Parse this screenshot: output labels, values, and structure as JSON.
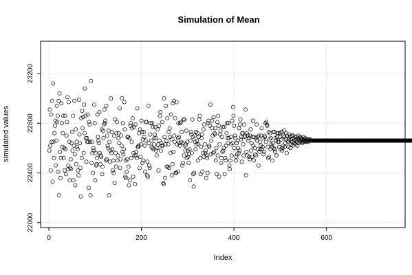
{
  "chart_data": {
    "type": "scatter",
    "title": "Simulation of Mean",
    "xlabel": "Index",
    "ylabel": "simulated values",
    "xlim": [
      -18,
      770
    ],
    "ylim": [
      21960,
      23460
    ],
    "x_ticks": [
      0,
      200,
      400,
      600
    ],
    "y_ticks": [
      22000,
      22400,
      22800,
      23200
    ],
    "grid": true,
    "n_points": 750,
    "series": [
      {
        "values": [
          22580,
          22910,
          22620,
          22420,
          22870,
          22650,
          22980,
          22330,
          23120,
          22650,
          22520,
          22720,
          22780,
          22820,
          22460,
          22660,
          22940,
          22810,
          22860,
          22410,
          22980,
          22220,
          23040,
          22570,
          22360,
          22520,
          22960,
          22800,
          22610,
          22720,
          22860,
          22520,
          22600,
          22420,
          22860,
          22590,
          22390,
          22700,
          22810,
          23010,
          22430,
          22460,
          22970,
          22650,
          22340,
          22440,
          22510,
          22430,
          22640,
          22730,
          22580,
          22860,
          22340,
          22620,
          22980,
          22550,
          22300,
          22750,
          22470,
          22650,
          22610,
          22590,
          22420,
          22380,
          22990,
          22710,
          22640,
          22440,
          22210,
          22840,
          22520,
          22900,
          22760,
          22850,
          22560,
          22950,
          22720,
          23080,
          22860,
          22680,
          22490,
          22680,
          22650,
          22870,
          22650,
          22280,
          22810,
          22790,
          22650,
          22220,
          23140,
          22480,
          22650,
          22560,
          22400,
          22600,
          22580,
          22950,
          22800,
          22340,
          22560,
          22460,
          22470,
          22520,
          22870,
          22690,
          22660,
          22640,
          22890,
          22560,
          22470,
          22540,
          22530,
          22750,
          22390,
          22450,
          22740,
          22680,
          22790,
          22910,
          22800,
          22820,
          22500,
          22940,
          22510,
          22700,
          22620,
          22600,
          22740,
          22220,
          22650,
          22490,
          22580,
          23000,
          22560,
          22730,
          22590,
          22420,
          22500,
          22400,
          22700,
          22320,
          22830,
          22560,
          22450,
          22720,
          22810,
          22500,
          22540,
          22680,
          22720,
          22640,
          22920,
          22440,
          22510,
          22700,
          22620,
          23000,
          22570,
          22800,
          22550,
          22590,
          22970,
          22750,
          22370,
          22500,
          22360,
          22410,
          22510,
          22690,
          22690,
          22450,
          22300,
          22680,
          22340,
          22780,
          22800,
          22520,
          22650,
          22760,
          22840,
          22370,
          22560,
          22770,
          22540,
          22310,
          22790,
          22540,
          22570,
          22520,
          22920,
          22610,
          22610,
          22620,
          22720,
          22440,
          22750,
          22530,
          22630,
          22820,
          22730,
          22480,
          22670,
          22500,
          22730,
          22690,
          22620,
          22410,
          22660,
          22810,
          22810,
          22380,
          22490,
          22370,
          22940,
          22640,
          22460,
          22440,
          22710,
          22800,
          22660,
          22610,
          22800,
          22600,
          22770,
          22590,
          22630,
          22680,
          22710,
          22770,
          22680,
          22580,
          22540,
          22600,
          22750,
          22630,
          22420,
          22780,
          22660,
          22860,
          22890,
          22580,
          22640,
          22620,
          22810,
          22620,
          22320,
          22310,
          23000,
          22690,
          22360,
          22630,
          22940,
          22660,
          22450,
          22840,
          22450,
          22630,
          22730,
          22440,
          22760,
          22690,
          22560,
          22870,
          22670,
          22380,
          22470,
          22960,
          22570,
          22980,
          22700,
          22650,
          22840,
          22400,
          22400,
          22970,
          22630,
          22410,
          22680,
          22800,
          22690,
          22640,
          22620,
          22800,
          22810,
          22650,
          22730,
          22460,
          22640,
          22480,
          22830,
          22540,
          22830,
          22620,
          22580,
          22630,
          22740,
          22520,
          22650,
          22580,
          22530,
          22480,
          22550,
          22590,
          22340,
          22660,
          22730,
          22710,
          22560,
          22830,
          22690,
          22390,
          22290,
          22400,
          22700,
          22650,
          22590,
          22730,
          22630,
          22660,
          22720,
          22500,
          22630,
          22690,
          22830,
          22860,
          22520,
          22390,
          22610,
          22680,
          22710,
          22410,
          22560,
          22750,
          22530,
          22790,
          22630,
          22560,
          22580,
          22360,
          22540,
          22520,
          22400,
          22800,
          22820,
          22620,
          22610,
          22780,
          22950,
          22550,
          22660,
          22820,
          22760,
          22700,
          22560,
          22850,
          22570,
          22720,
          22710,
          22760,
          22500,
          22600,
          22390,
          22810,
          22540,
          22860,
          22780,
          22370,
          22630,
          22710,
          22740,
          22480,
          22520,
          22690,
          22570,
          22770,
          22580,
          22600,
          22770,
          22390,
          22520,
          22500,
          22620,
          22720,
          22800,
          22680,
          22640,
          22800,
          22680,
          22460,
          22430,
          22500,
          22690,
          22630,
          22540,
          22820,
          22640,
          22930,
          22860,
          22780,
          22600,
          22700,
          22680,
          22500,
          22530,
          22640,
          22550,
          22660,
          22600,
          22560,
          22760,
          22580,
          22790,
          22830,
          22670,
          22690,
          22490,
          22720,
          22720,
          22630,
          22540,
          22790,
          22690,
          22700,
          22910,
          22380,
          22570,
          22720,
          22540,
          22700,
          22660,
          22680,
          22530,
          22510,
          22700,
          22750,
          22580,
          22640,
          22530,
          22690,
          22820,
          22620,
          22500,
          22690,
          22600,
          22550,
          22680,
          22540,
          22790,
          22660,
          22690,
          22590,
          22460,
          22700,
          22570,
          22650,
          22590,
          22620,
          22700,
          22760,
          22590,
          22610,
          22680,
          22550,
          22570,
          22700,
          22690,
          22800,
          22650,
          22810,
          22790,
          22780,
          22610,
          22520,
          22730,
          22530,
          22670,
          22720,
          22590,
          22680,
          22630,
          22610,
          22500,
          22640,
          22730,
          22600,
          22730,
          22590,
          22570,
          22680,
          22660,
          22540,
          22690,
          22720,
          22650,
          22720,
          22650,
          22610,
          22720,
          22690,
          22590,
          22670,
          22730,
          22580,
          22600,
          22620,
          22700,
          22740,
          22690,
          22610,
          22640,
          22670,
          22720,
          22560,
          22700,
          22660,
          22650,
          22610,
          22670,
          22710,
          22690,
          22600,
          22670,
          22630,
          22700,
          22650,
          22620,
          22700,
          22680,
          22640,
          22660,
          22690,
          22630,
          22670,
          22690,
          22650,
          22620,
          22680,
          22700,
          22640,
          22660,
          22670,
          22690,
          22650,
          22660,
          22680,
          22670,
          22640,
          22650,
          22690,
          22670,
          22660,
          22650,
          22680,
          22660,
          22670,
          22650,
          22660,
          22670,
          22660,
          22650,
          22670,
          22660,
          22660,
          22670,
          22660,
          22660,
          22660,
          22660,
          22660,
          22660,
          22660,
          22660,
          22660,
          22660,
          22660,
          22660,
          22660,
          22660,
          22660,
          22660,
          22660,
          22660,
          22660,
          22660,
          22660,
          22660,
          22660,
          22660,
          22660,
          22660,
          22660,
          22660,
          22660,
          22660,
          22660,
          22660,
          22660,
          22660,
          22660,
          22660,
          22660,
          22660,
          22660,
          22660,
          22660,
          22660,
          22660,
          22660,
          22660,
          22660,
          22660,
          22660,
          22660,
          22660,
          22660,
          22660,
          22660,
          22660,
          22660,
          22660,
          22660,
          22660,
          22660,
          22660,
          22660,
          22660,
          22660,
          22660,
          22660,
          22660,
          22660,
          22660,
          22660,
          22660,
          22660,
          22660,
          22660,
          22660,
          22660,
          22660,
          22660,
          22660,
          22660,
          22660,
          22660,
          22660,
          22660,
          22660,
          22660,
          22660,
          22660,
          22660,
          22660,
          22660,
          22660,
          22660,
          22660,
          22660,
          22660,
          22660,
          22660,
          22660,
          22660,
          22660,
          22660,
          22660,
          22660,
          22660,
          22660,
          22660,
          22660,
          22660,
          22660,
          22660,
          22660,
          22660,
          22660,
          22660,
          22660,
          22660,
          22660,
          22660,
          22660,
          22660,
          22660,
          22660,
          22660,
          22660,
          22660,
          22660,
          22660,
          22660,
          22660,
          22660,
          22660,
          22660,
          22660,
          22660,
          22660,
          22660,
          22660,
          22660,
          22660,
          22660,
          22660,
          22660,
          22660,
          22660,
          22660,
          22660,
          22660,
          22660,
          22660,
          22660,
          22660,
          22660,
          22660,
          22660,
          22660,
          22660,
          22660,
          22660,
          22660,
          22660,
          22660,
          22660,
          22660,
          22660,
          22660,
          22660,
          22660,
          22660,
          22660,
          22660,
          22660,
          22660,
          22660,
          22660,
          22660,
          22660,
          22660,
          22660,
          22660,
          22660,
          22660,
          22660,
          22660,
          22660,
          22660,
          22660,
          22660,
          22660,
          22660,
          22660,
          22660,
          22660,
          22660,
          22660,
          22660,
          22660,
          22660,
          22660,
          22660,
          22660,
          22660,
          22660,
          22660,
          22660,
          22660,
          22660,
          22660,
          22660,
          22660,
          22660,
          22660,
          22660,
          22660,
          22660,
          22660,
          22660,
          22660,
          22660,
          22660,
          22660,
          22660,
          22660,
          22660,
          22660,
          22660,
          22660,
          22660,
          22660,
          22660,
          22660,
          22660,
          22660,
          22660,
          22660,
          22660,
          22660,
          22660,
          22660,
          22660,
          22660,
          22660,
          22660,
          22660,
          22660,
          22660,
          22660,
          22660,
          22660,
          22660,
          22660,
          22660,
          22660,
          22660,
          22660,
          22660,
          22660,
          22660,
          22660,
          22660,
          22660,
          22660,
          22660,
          22660,
          22660,
          22660,
          22660,
          22660,
          22660,
          22660
        ]
      }
    ]
  }
}
